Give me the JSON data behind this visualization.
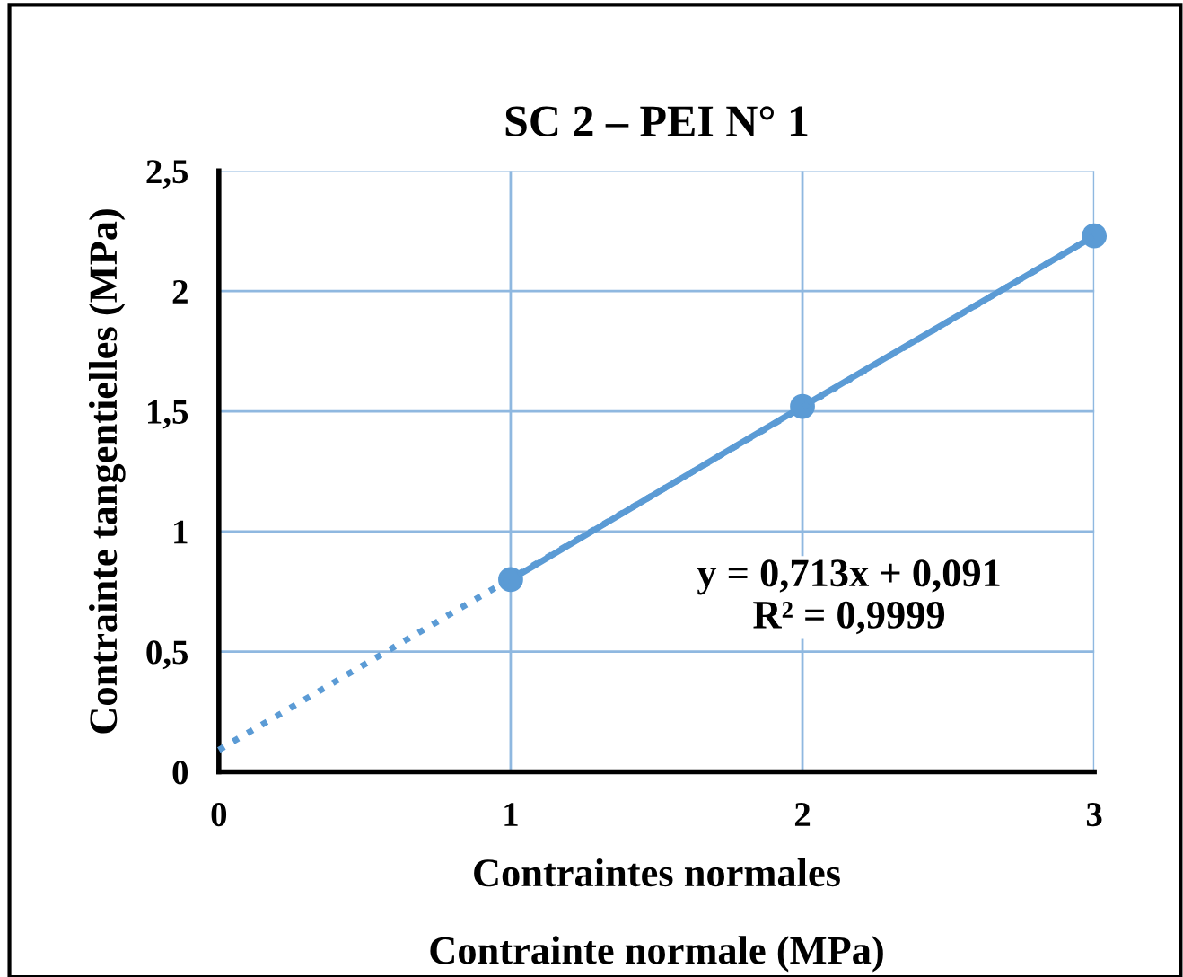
{
  "chart_data": {
    "type": "line",
    "title": "SC 2 – PEI N° 1",
    "xlabel": "Contraintes normales",
    "ylabel": "Contrainte tangentielles (MPa)",
    "annotations": [
      "Contrainte normale (MPa)",
      "y = 0,713x + 0,091\nR² = 0,9999"
    ],
    "x": [
      1,
      2,
      3
    ],
    "series": [
      {
        "color": "#5b9bd5",
        "values": [
          0.8,
          1.52,
          2.23
        ],
        "marker": "circle",
        "line_style": "solid"
      },
      {
        "color": "#5b9bd5",
        "x": [
          0,
          3
        ],
        "values": [
          0.091,
          2.23
        ],
        "marker": "none",
        "line_style": "dotted"
      }
    ],
    "xlim": [
      0,
      3
    ],
    "ylim": [
      0,
      2.5
    ],
    "xticks": [
      0,
      1,
      2,
      3
    ],
    "yticks": [
      0,
      {
        "value": 0.5,
        "label": "0,5"
      },
      1,
      {
        "value": 1.5,
        "label": "1,5"
      },
      2,
      {
        "value": 2.5,
        "label": "2,5"
      }
    ],
    "grid": true
  }
}
